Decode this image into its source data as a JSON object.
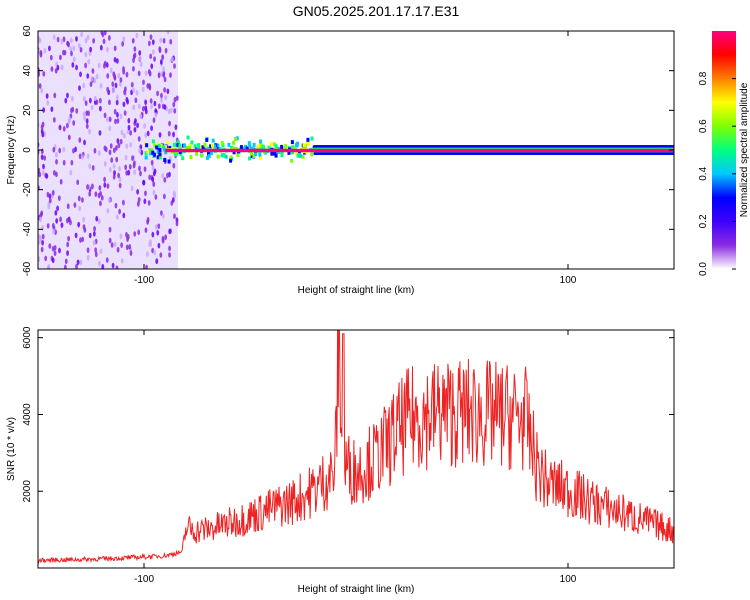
{
  "title": "GN05.2025.201.17.17.E31",
  "chart_data": [
    {
      "type": "heatmap",
      "xlabel": "Height of straight line (km)",
      "ylabel": "Frequency (Hz)",
      "xlim": [
        -150,
        150
      ],
      "ylim": [
        -60,
        60
      ],
      "x_ticks": [
        -100,
        100
      ],
      "y_ticks": [
        -60,
        -40,
        -20,
        0,
        20,
        40,
        60
      ],
      "colorbar": {
        "label": "Normalized spectral amplitude",
        "range": [
          0.0,
          1.0
        ],
        "ticks": [
          "0.0",
          "0.2",
          "0.4",
          "0.6",
          "0.8"
        ],
        "colors": [
          "#ffffff",
          "#8a2be2",
          "#3b00ff",
          "#0000ff",
          "#00c8ff",
          "#00ff80",
          "#80ff00",
          "#ffff00",
          "#ff8000",
          "#ff0000",
          "#ff0080"
        ]
      },
      "bands": [
        {
          "x": [
            -150,
            -84
          ],
          "freq_half_width": 60,
          "amplitude": 0.05,
          "note_color": "#8a2be2"
        },
        {
          "x": [
            -100,
            -20
          ],
          "freq_half_width": 7,
          "amplitude": 0.4
        },
        {
          "x": [
            -20,
            150
          ],
          "freq_half_width": 2,
          "amplitude": 0.95
        }
      ]
    },
    {
      "type": "line",
      "xlabel": "Height of straight line (km)",
      "ylabel": "SNR (10 * v/v)",
      "xlim": [
        -150,
        150
      ],
      "ylim": [
        0,
        6200
      ],
      "x_ticks": [
        -100,
        100
      ],
      "y_ticks": [
        2000,
        4000,
        6000
      ],
      "series": [
        {
          "color": "#ee2222",
          "x": [
            -150,
            -130,
            -110,
            -90,
            -82,
            -80,
            -75,
            -70,
            -60,
            -50,
            -40,
            -30,
            -20,
            -10,
            -8,
            -6,
            0,
            10,
            20,
            25,
            30,
            40,
            50,
            60,
            70,
            75,
            80,
            85,
            90,
            100,
            110,
            120,
            130,
            140,
            150
          ],
          "values": [
            200,
            220,
            260,
            320,
            420,
            1100,
            1000,
            1050,
            1200,
            1400,
            1600,
            1800,
            2100,
            2600,
            6100,
            2800,
            2600,
            3000,
            3700,
            4000,
            4100,
            4200,
            4200,
            4150,
            4100,
            4100,
            4000,
            2800,
            2300,
            2100,
            1800,
            1600,
            1400,
            1200,
            1000
          ]
        }
      ]
    }
  ]
}
